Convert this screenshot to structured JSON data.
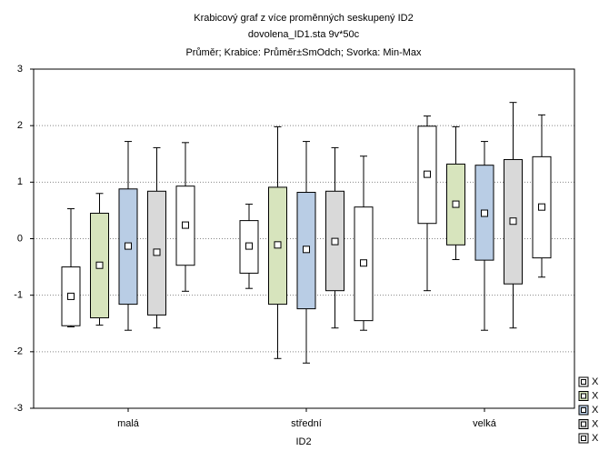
{
  "chart_data": {
    "type": "box",
    "title": "Krabicový graf z více proměnných seskupený ID2",
    "subtitle": "dovolena_ID1.sta 9v*50c",
    "note": "Průměr; Krabice: Průměr±SmOdch; Svorka: Min-Max",
    "x_label": "ID2",
    "categories": [
      "malá",
      "střední",
      "velká"
    ],
    "ylim": [
      -3,
      3
    ],
    "yticks": [
      -3,
      -2,
      -1,
      0,
      1,
      2,
      3
    ],
    "grid": true,
    "series": [
      {
        "name": "X",
        "color": "#ffffff",
        "mean": [
          -1.02,
          -0.13,
          1.14
        ],
        "box_low": [
          -1.54,
          -0.61,
          0.27
        ],
        "box_high": [
          -0.5,
          0.32,
          1.99
        ],
        "min": [
          -1.56,
          -0.88,
          -0.92
        ],
        "max": [
          0.53,
          0.61,
          2.17
        ]
      },
      {
        "name": "X",
        "color": "#d7e4bd",
        "mean": [
          -0.47,
          -0.11,
          0.61
        ],
        "box_low": [
          -1.4,
          -1.16,
          -0.11
        ],
        "box_high": [
          0.45,
          0.91,
          1.32
        ],
        "min": [
          -1.53,
          -2.12,
          -0.37
        ],
        "max": [
          0.8,
          1.98,
          1.98
        ]
      },
      {
        "name": "X",
        "color": "#b9cde5",
        "mean": [
          -0.13,
          -0.19,
          0.45
        ],
        "box_low": [
          -1.16,
          -1.24,
          -0.38
        ],
        "box_high": [
          0.88,
          0.82,
          1.3
        ],
        "min": [
          -1.62,
          -2.2,
          -1.62
        ],
        "max": [
          1.72,
          1.72,
          1.72
        ]
      },
      {
        "name": "X",
        "color": "#d9d9d9",
        "mean": [
          -0.24,
          -0.05,
          0.31
        ],
        "box_low": [
          -1.35,
          -0.92,
          -0.8
        ],
        "box_high": [
          0.84,
          0.84,
          1.4
        ],
        "min": [
          -1.58,
          -1.58,
          -1.58
        ],
        "max": [
          1.61,
          1.61,
          2.41
        ]
      },
      {
        "name": "X",
        "color": "#ffffff",
        "mean": [
          0.24,
          -0.43,
          0.56
        ],
        "box_low": [
          -0.47,
          -1.45,
          -0.34
        ],
        "box_high": [
          0.93,
          0.56,
          1.45
        ],
        "min": [
          -0.93,
          -1.62,
          -0.68
        ],
        "max": [
          1.7,
          1.46,
          2.19
        ]
      }
    ]
  }
}
